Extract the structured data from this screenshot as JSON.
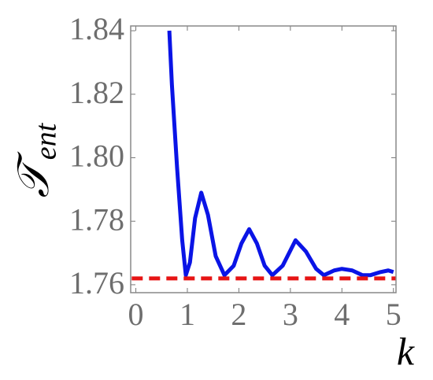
{
  "chart_data": {
    "type": "line",
    "xlabel": "k",
    "ylabel": "𝒯",
    "ylabel_sub": "ent",
    "xlim": [
      -0.1,
      5.05
    ],
    "ylim": [
      1.7575,
      1.8415
    ],
    "xticks": [
      0,
      1,
      2,
      3,
      4,
      5
    ],
    "yticks": [
      1.76,
      {
        "value": 1.78,
        "label": "1.78"
      },
      {
        "value": 1.8,
        "label": "1.80"
      },
      1.82,
      1.84
    ],
    "series": [
      {
        "color": "#0a14e6",
        "dashed": false,
        "x": [
          0.65,
          0.7,
          0.8,
          0.9,
          0.97,
          1.05,
          1.15,
          1.27,
          1.4,
          1.55,
          1.72,
          1.9,
          2.05,
          2.2,
          2.35,
          2.5,
          2.65,
          2.85,
          3.1,
          3.3,
          3.5,
          3.65,
          3.85,
          4.0,
          4.2,
          4.4,
          4.55,
          4.75,
          4.9,
          5.0
        ],
        "values": [
          1.84,
          1.823,
          1.797,
          1.774,
          1.763,
          1.767,
          1.781,
          1.789,
          1.782,
          1.769,
          1.763,
          1.766,
          1.773,
          1.7775,
          1.773,
          1.766,
          1.763,
          1.766,
          1.774,
          1.7705,
          1.765,
          1.763,
          1.7645,
          1.765,
          1.7645,
          1.763,
          1.763,
          1.764,
          1.7645,
          1.764
        ]
      },
      {
        "color": "#e61414",
        "dashed": true,
        "x": [
          -0.08,
          5.05
        ],
        "values": [
          1.762,
          1.762
        ]
      }
    ]
  }
}
